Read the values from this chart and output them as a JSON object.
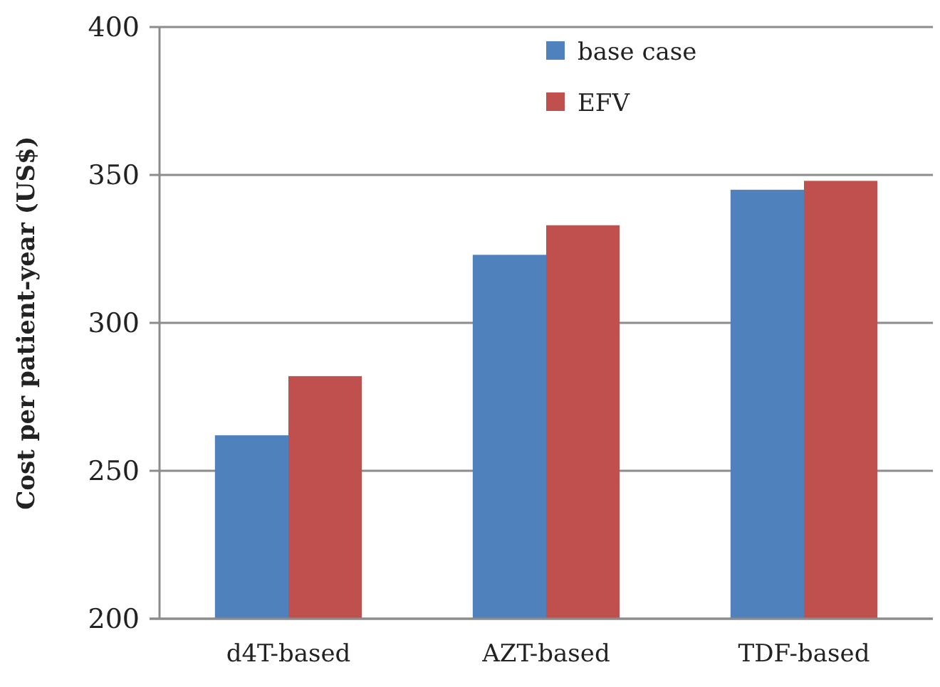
{
  "chart_data": {
    "type": "bar",
    "ylabel": "Cost per patient-year (US$)",
    "categories": [
      "d4T-based",
      "AZT-based",
      "TDF-based"
    ],
    "series": [
      {
        "name": "base case",
        "color": "#4f81bd",
        "values": [
          262,
          323,
          345
        ]
      },
      {
        "name": "EFV",
        "color": "#c0504d",
        "values": [
          282,
          333,
          348
        ]
      }
    ],
    "ylim": [
      200,
      400
    ],
    "yticks": [
      200,
      250,
      300,
      350,
      400
    ],
    "grid": "y",
    "legend": "top right"
  }
}
